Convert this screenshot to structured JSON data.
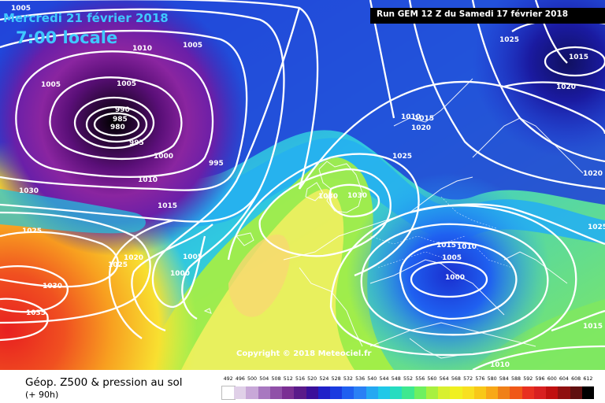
{
  "header": {
    "date": "Mercredi 21 février 2018",
    "time": "7:00 locale",
    "run": "Run GEM 12 Z du Samedi 17 février 2018"
  },
  "copyright": "Copyright © 2018 Meteociel.fr",
  "legend": {
    "title": "Géop. Z500 & pression au sol",
    "subtitle": "(+ 90h)",
    "scale_values": [
      "492",
      "496",
      "500",
      "504",
      "508",
      "512",
      "516",
      "520",
      "524",
      "528",
      "532",
      "536",
      "540",
      "544",
      "548",
      "552",
      "556",
      "560",
      "564",
      "568",
      "572",
      "576",
      "580",
      "584",
      "588",
      "592",
      "596",
      "600",
      "604",
      "608",
      "612"
    ],
    "scale_colors": [
      "#ffffff",
      "#e0d0e8",
      "#c8a8d8",
      "#a878c0",
      "#9050a8",
      "#7a2f93",
      "#5a1a8a",
      "#3a0f9a",
      "#2020c8",
      "#1a3be0",
      "#1f5ff0",
      "#2a80f5",
      "#25a8f2",
      "#1fc8e8",
      "#26dcc0",
      "#3ee890",
      "#6ef060",
      "#a8f040",
      "#d8f030",
      "#f0f020",
      "#f8e020",
      "#f8c818",
      "#f8a818",
      "#f08018",
      "#f05818",
      "#e83020",
      "#d82020",
      "#c01010",
      "#901010",
      "#601010",
      "#000000"
    ]
  },
  "map": {
    "pressure_labels": [
      {
        "text": "1005"
      },
      {
        "text": "1010"
      },
      {
        "text": "1005"
      },
      {
        "text": "1005"
      },
      {
        "text": "1005"
      },
      {
        "text": "990"
      },
      {
        "text": "985"
      },
      {
        "text": "980"
      },
      {
        "text": "995"
      },
      {
        "text": "1000"
      },
      {
        "text": "995"
      },
      {
        "text": "1010"
      },
      {
        "text": "1015"
      },
      {
        "text": "1030"
      },
      {
        "text": "1025"
      },
      {
        "text": "1020"
      },
      {
        "text": "1025"
      },
      {
        "text": "1030"
      },
      {
        "text": "1035"
      },
      {
        "text": "1005"
      },
      {
        "text": "1000"
      },
      {
        "text": "1030"
      },
      {
        "text": "1030"
      },
      {
        "text": "1015"
      },
      {
        "text": "1020"
      },
      {
        "text": "1025"
      },
      {
        "text": "1015"
      },
      {
        "text": "1005"
      },
      {
        "text": "1010"
      },
      {
        "text": "1000"
      },
      {
        "text": "1030"
      },
      {
        "text": "1025"
      },
      {
        "text": "1015"
      },
      {
        "text": "1020"
      },
      {
        "text": "1020"
      },
      {
        "text": "1025"
      },
      {
        "text": "1015"
      },
      {
        "text": "1010"
      },
      {
        "text": "1010"
      }
    ]
  }
}
